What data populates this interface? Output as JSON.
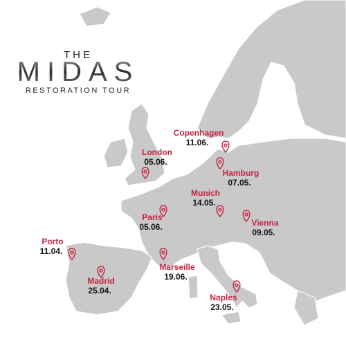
{
  "header": {
    "line1": "THE",
    "line2": "MIDAS",
    "line3": "RESTORATION TOUR"
  },
  "stops": [
    {
      "city": "Copenhagen",
      "date": "11.06."
    },
    {
      "city": "London",
      "date": "05.06."
    },
    {
      "city": "Hamburg",
      "date": "07.05."
    },
    {
      "city": "Munich",
      "date": "14.05."
    },
    {
      "city": "Paris",
      "date": "05.06."
    },
    {
      "city": "Vienna",
      "date": "09.05."
    },
    {
      "city": "Porto",
      "date": "11.04."
    },
    {
      "city": "Marseille",
      "date": "19.06."
    },
    {
      "city": "Madrid",
      "date": "25.04."
    },
    {
      "city": "Naples",
      "date": "23.05."
    }
  ]
}
